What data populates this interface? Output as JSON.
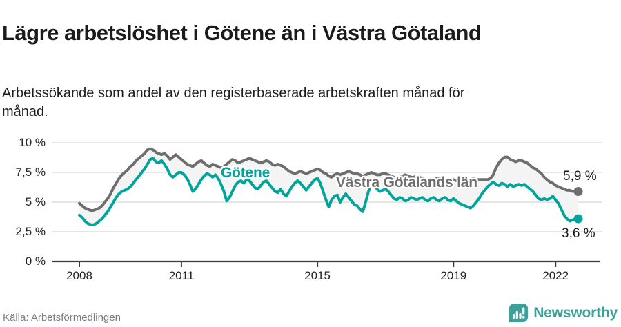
{
  "header": {
    "title": "Lägre arbetslöshet i Götene än i Västra Götaland",
    "subtitle": "Arbetssökande som andel av den registerbaserade arbetskraften månad för månad."
  },
  "footer": {
    "source": "Källa: Arbetsförmedlingen",
    "brand": "Newsworthy",
    "brand_icon": "newsworthy-bubble-chart-icon"
  },
  "colors": {
    "gotene_line": "#00a49b",
    "vastra_line": "#6e6e6e",
    "band_fill": "#f4f4f4",
    "grid": "#d8d8d8",
    "axis": "#3c3c3c",
    "brand_teal": "#3d9e9a"
  },
  "chart_data": {
    "type": "line",
    "title": "Lägre arbetslöshet i Götene än i Västra Götaland",
    "subtitle": "Arbetssökande som andel av den registerbaserade arbetskraften månad för månad.",
    "x_unit": "month",
    "x_start_year": 2008,
    "x_end": "2022-09",
    "grid": true,
    "band_fill_between_series": true,
    "ylim": [
      0,
      10.3
    ],
    "x_ticks": [
      {
        "value": 2008,
        "label": "2008"
      },
      {
        "value": 2011,
        "label": "2011"
      },
      {
        "value": 2015,
        "label": "2015"
      },
      {
        "value": 2019,
        "label": "2019"
      },
      {
        "value": 2022,
        "label": "2022"
      }
    ],
    "y_ticks": [
      {
        "value": 0,
        "label": "0 %"
      },
      {
        "value": 2.5,
        "label": "2,5 %"
      },
      {
        "value": 5,
        "label": "5 %"
      },
      {
        "value": 7.5,
        "label": "7,5 %"
      },
      {
        "value": 10,
        "label": "10 %"
      }
    ],
    "series": [
      {
        "name": "Västra Götalands län",
        "color": "#6e6e6e",
        "end_label": "5,9 %",
        "values": [
          4.9,
          4.7,
          4.5,
          4.4,
          4.3,
          4.3,
          4.4,
          4.5,
          4.7,
          5.0,
          5.3,
          5.7,
          6.2,
          6.6,
          7.0,
          7.3,
          7.5,
          7.7,
          8.0,
          8.2,
          8.5,
          8.7,
          8.9,
          9.1,
          9.4,
          9.5,
          9.4,
          9.2,
          9.1,
          9.0,
          9.1,
          8.9,
          8.6,
          8.8,
          9.0,
          8.8,
          8.6,
          8.4,
          8.2,
          8.1,
          8.0,
          8.2,
          8.4,
          8.5,
          8.3,
          8.1,
          8.0,
          8.2,
          8.1,
          8.0,
          7.9,
          8.0,
          8.2,
          8.4,
          8.6,
          8.5,
          8.3,
          8.4,
          8.5,
          8.6,
          8.7,
          8.6,
          8.5,
          8.4,
          8.3,
          8.4,
          8.5,
          8.4,
          8.2,
          8.1,
          8.2,
          8.1,
          8.0,
          7.8,
          7.6,
          7.5,
          7.4,
          7.5,
          7.6,
          7.5,
          7.4,
          7.5,
          7.6,
          7.7,
          7.8,
          7.7,
          7.5,
          7.4,
          7.2,
          7.1,
          7.3,
          7.4,
          7.3,
          7.4,
          7.5,
          7.6,
          7.5,
          7.4,
          7.4,
          7.3,
          7.2,
          7.3,
          7.4,
          7.5,
          7.4,
          7.3,
          7.3,
          7.4,
          7.4,
          7.3,
          7.2,
          7.1,
          7.0,
          7.1,
          7.2,
          7.3,
          7.2,
          7.1,
          7.1,
          7.2,
          7.1,
          7.0,
          6.9,
          6.8,
          6.8,
          6.9,
          7.0,
          7.0,
          6.9,
          6.8,
          6.8,
          6.9,
          6.9,
          6.8,
          6.8,
          6.7,
          6.7,
          6.8,
          6.9,
          7.0,
          6.9,
          6.9,
          6.9,
          6.9,
          6.9,
          7.0,
          7.3,
          7.9,
          8.3,
          8.6,
          8.8,
          8.8,
          8.6,
          8.5,
          8.4,
          8.5,
          8.5,
          8.4,
          8.3,
          8.1,
          7.9,
          7.8,
          7.6,
          7.4,
          7.1,
          6.9,
          6.7,
          6.6,
          6.4,
          6.3,
          6.2,
          6.1,
          6.0,
          6.0,
          5.9,
          5.9,
          5.9
        ]
      },
      {
        "name": "Götene",
        "color": "#00a49b",
        "end_label": "3,6 %",
        "values": [
          3.9,
          3.7,
          3.4,
          3.2,
          3.1,
          3.1,
          3.2,
          3.4,
          3.6,
          3.9,
          4.2,
          4.6,
          5.0,
          5.4,
          5.7,
          5.9,
          6.0,
          6.1,
          6.3,
          6.6,
          6.9,
          7.2,
          7.5,
          7.8,
          8.2,
          8.6,
          8.7,
          8.4,
          8.3,
          8.5,
          8.2,
          7.8,
          7.3,
          7.1,
          7.3,
          7.5,
          7.5,
          7.3,
          7.0,
          6.5,
          5.9,
          6.1,
          6.5,
          6.9,
          7.2,
          7.4,
          7.3,
          7.1,
          7.3,
          7.0,
          6.5,
          5.9,
          5.1,
          5.4,
          5.9,
          6.4,
          6.7,
          6.8,
          6.6,
          6.9,
          6.8,
          6.5,
          6.2,
          6.1,
          6.4,
          6.7,
          6.8,
          6.5,
          6.2,
          5.9,
          5.8,
          6.1,
          5.7,
          5.5,
          5.9,
          6.3,
          6.6,
          6.8,
          6.6,
          6.3,
          6.0,
          6.3,
          6.6,
          6.9,
          7.0,
          6.6,
          5.9,
          5.2,
          4.6,
          5.2,
          5.5,
          5.6,
          5.0,
          5.4,
          5.7,
          5.4,
          5.1,
          4.8,
          4.7,
          4.4,
          4.2,
          5.0,
          5.9,
          6.5,
          6.4,
          6.1,
          5.9,
          6.0,
          6.1,
          5.9,
          5.6,
          5.3,
          5.2,
          5.4,
          5.3,
          5.1,
          5.2,
          5.4,
          5.3,
          5.2,
          5.3,
          5.4,
          5.2,
          5.1,
          5.3,
          5.4,
          5.2,
          5.1,
          5.3,
          5.4,
          5.2,
          5.1,
          5.3,
          5.1,
          4.9,
          4.8,
          4.7,
          4.6,
          4.5,
          4.7,
          5.0,
          5.3,
          5.7,
          6.0,
          6.3,
          6.5,
          6.7,
          6.5,
          6.4,
          6.6,
          6.5,
          6.3,
          6.5,
          6.3,
          6.4,
          6.5,
          6.4,
          6.5,
          6.3,
          6.1,
          5.9,
          5.6,
          5.3,
          5.2,
          5.3,
          5.2,
          5.3,
          5.5,
          5.2,
          4.9,
          4.4,
          3.9,
          3.6,
          3.4,
          3.5,
          3.6,
          3.6
        ]
      }
    ]
  }
}
